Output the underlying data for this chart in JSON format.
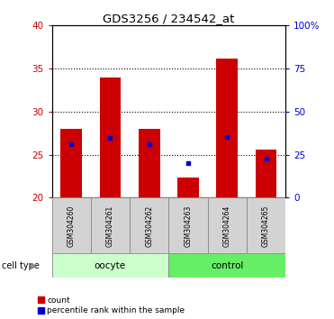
{
  "title": "GDS3256 / 234542_at",
  "samples": [
    "GSM304260",
    "GSM304261",
    "GSM304262",
    "GSM304263",
    "GSM304264",
    "GSM304265"
  ],
  "bar_top": [
    28.0,
    34.0,
    28.0,
    22.3,
    36.2,
    25.6
  ],
  "bar_bottom": 20.0,
  "percentile_values": [
    26.2,
    27.0,
    26.2,
    24.0,
    27.1,
    24.6
  ],
  "ylim_left": [
    20,
    40
  ],
  "ylim_right": [
    0,
    100
  ],
  "yticks_left": [
    20,
    25,
    30,
    35,
    40
  ],
  "yticks_right": [
    0,
    25,
    50,
    75,
    100
  ],
  "bar_color": "#cc0000",
  "percentile_color": "#0000cc",
  "left_tick_color": "#cc0000",
  "right_tick_color": "#0000cc",
  "bg_color": "#ffffff",
  "sample_box_color": "#d3d3d3",
  "oocyte_color": "#ccffcc",
  "control_color": "#66ee66",
  "legend_count_label": "count",
  "legend_percentile_label": "percentile rank within the sample",
  "cell_type_label": "cell type",
  "figsize": [
    3.71,
    3.54
  ],
  "dpi": 100
}
